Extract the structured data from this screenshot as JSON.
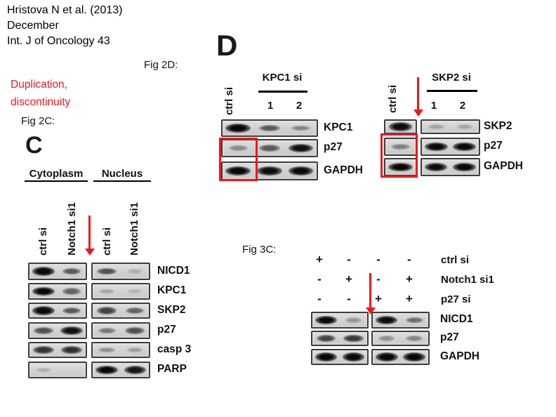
{
  "citation": {
    "lines": [
      "Hristova N et al. (2013)",
      "December",
      "Int. J of Oncology 43"
    ]
  },
  "annotation": {
    "lines": [
      "Duplication,",
      "discontinuity"
    ]
  },
  "figure_labels": {
    "fig2d": "Fig 2D:",
    "fig2c": "Fig 2C:",
    "fig3c": "Fig 3C:"
  },
  "colors": {
    "highlight_red": "#f3151c",
    "blot_border": "#3d3d3d",
    "blot_bg_light": "#dddddd",
    "blot_bg_dark": "#c8c8c8",
    "text": "#111111"
  },
  "panel_c": {
    "letter": "C",
    "group_headers": [
      "Cytoplasm",
      "Nucleus"
    ],
    "lane_labels": [
      "ctrl si",
      "Notch1 si1",
      "ctrl si",
      "Notch1 si1"
    ],
    "rows": [
      {
        "label": "NICD1",
        "groups": [
          [
            0.97,
            0.5
          ],
          [
            0.55,
            0.06
          ]
        ]
      },
      {
        "label": "KPC1",
        "groups": [
          [
            0.92,
            0.45
          ],
          [
            0.12,
            0.03
          ]
        ]
      },
      {
        "label": "SKP2",
        "groups": [
          [
            0.92,
            0.5
          ],
          [
            0.62,
            0.45
          ]
        ]
      },
      {
        "label": "p27",
        "groups": [
          [
            0.55,
            0.88
          ],
          [
            0.35,
            0.55
          ]
        ]
      },
      {
        "label": "casp 3",
        "groups": [
          [
            0.7,
            0.72
          ],
          [
            0.22,
            0.15
          ]
        ]
      },
      {
        "label": "PARP",
        "groups": [
          [
            0.06,
            0.0
          ],
          [
            0.95,
            0.85
          ]
        ]
      }
    ]
  },
  "panel_d": {
    "letter": "D",
    "blots": [
      {
        "header": "KPC1 si",
        "ctrl_label": "ctrl si",
        "lane_numbers": [
          "1",
          "2"
        ],
        "rows": [
          {
            "label": "KPC1",
            "groups": [
              [
                0.95,
                0.5,
                0.28
              ]
            ]
          },
          {
            "label": "p27",
            "groups": [
              [
                0.25,
                0.5,
                0.88
              ]
            ]
          },
          {
            "label": "GAPDH",
            "groups": [
              [
                0.95,
                0.9,
                0.92
              ]
            ]
          }
        ]
      },
      {
        "header": "SKP2 si",
        "ctrl_label": "ctrl si",
        "lane_numbers": [
          "1",
          "2"
        ],
        "rows": [
          {
            "label": "SKP2",
            "groups": [
              [
                0.9
              ],
              [
                0.12,
                0.1
              ]
            ]
          },
          {
            "label": "p27",
            "groups": [
              [
                0.3
              ],
              [
                0.95,
                0.95
              ]
            ]
          },
          {
            "label": "GAPDH",
            "groups": [
              [
                0.95
              ],
              [
                0.9,
                0.95
              ]
            ]
          }
        ]
      }
    ]
  },
  "fig3c": {
    "conditions": [
      {
        "signs": [
          "+",
          "-",
          "-",
          "-"
        ],
        "label": "ctrl si"
      },
      {
        "signs": [
          "-",
          "+",
          "-",
          "+"
        ],
        "label": "Notch1 si1"
      },
      {
        "signs": [
          "-",
          "-",
          "+",
          "+"
        ],
        "label": "p27 si"
      }
    ],
    "rows": [
      {
        "label": "NICD1",
        "groups": [
          [
            0.97,
            0.18
          ],
          [
            0.9,
            0.4
          ]
        ]
      },
      {
        "label": "p27",
        "groups": [
          [
            0.6,
            0.68
          ],
          [
            0.22,
            0.28
          ]
        ]
      },
      {
        "label": "GAPDH",
        "groups": [
          [
            0.95,
            0.92
          ],
          [
            0.95,
            0.95
          ]
        ]
      }
    ]
  }
}
